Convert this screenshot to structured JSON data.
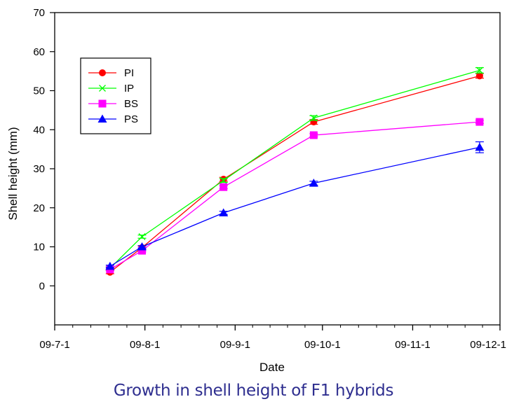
{
  "chart_data": {
    "type": "line",
    "title": "",
    "caption": "Growth in shell height of F1 hybrids",
    "xlabel": "Date",
    "ylabel": "Shell height (mm)",
    "ylim": [
      -10,
      70
    ],
    "yticks": [
      0,
      10,
      20,
      30,
      40,
      50,
      60,
      70
    ],
    "xlim": [
      "09-7-1",
      "09-12-1"
    ],
    "xticks": [
      "09-7-1",
      "09-8-1",
      "09-9-1",
      "09-10-1",
      "09-11-1",
      "09-12-1"
    ],
    "x": [
      "09-7-20",
      "09-7-31",
      "09-8-28",
      "09-9-28",
      "09-11-24"
    ],
    "legend_position": "top-left",
    "grid": false,
    "series": [
      {
        "name": "PI",
        "color": "#ff0000",
        "marker": "circle",
        "values": [
          3.5,
          9.8,
          27.3,
          42.0,
          53.8
        ],
        "errors": [
          0.4,
          0.4,
          0.5,
          0.6,
          0.6
        ]
      },
      {
        "name": "IP",
        "color": "#00ff00",
        "marker": "x",
        "values": [
          4.5,
          12.6,
          27.0,
          43.0,
          55.2
        ],
        "errors": [
          0.4,
          0.4,
          0.5,
          0.6,
          0.7
        ]
      },
      {
        "name": "BS",
        "color": "#ff00ff",
        "marker": "square",
        "values": [
          4.2,
          9.0,
          25.3,
          38.6,
          42.0
        ],
        "errors": [
          0.3,
          0.3,
          0.4,
          0.4,
          0.4
        ]
      },
      {
        "name": "PS",
        "color": "#0000ff",
        "marker": "triangle",
        "values": [
          5.0,
          10.0,
          18.7,
          26.3,
          35.5
        ],
        "errors": [
          0.3,
          0.3,
          0.4,
          0.5,
          1.4
        ]
      }
    ]
  }
}
